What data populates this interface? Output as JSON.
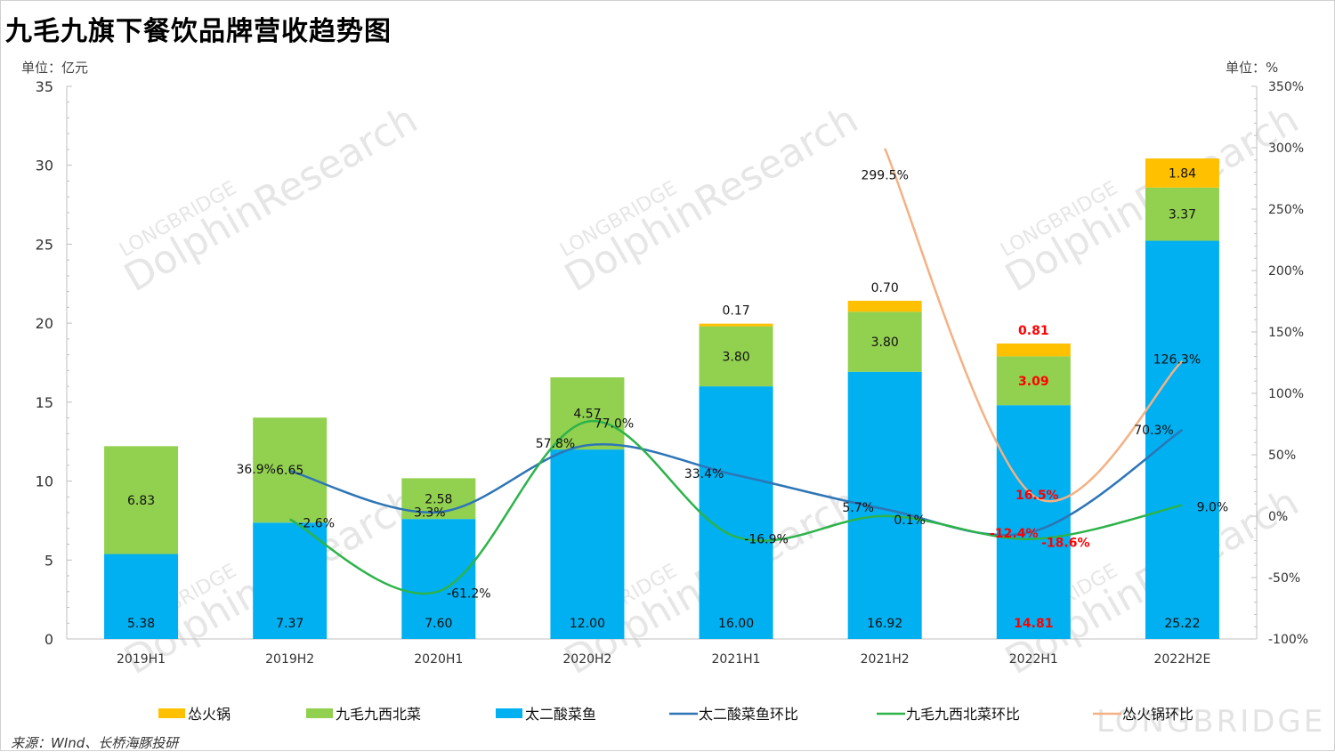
{
  "title": "九毛九旗下餐饮品牌营收趋势图",
  "unit_left": "单位：亿元",
  "unit_right": "单位：%",
  "source": "来源：WInd、长桥海豚投研",
  "watermark": {
    "brand": "DolphinResearch",
    "sub": "LONGBRIDGE",
    "corner": "LONGBRIDGE"
  },
  "colors": {
    "taier": "#00b0f0",
    "jiumaojiu": "#92d050",
    "song": "#ffc000",
    "taier_line": "#2e75b6",
    "jiumaojiu_line": "#2db34a",
    "song_line": "#f4b183",
    "red_label": "#ff0000"
  },
  "chart_data": {
    "type": "bar",
    "stacked": true,
    "categories": [
      "2019H1",
      "2019H2",
      "2020H1",
      "2020H2",
      "2021H1",
      "2021H2",
      "2022H1",
      "2022H2E"
    ],
    "y_left": {
      "label": "单位：亿元",
      "min": 0,
      "max": 35,
      "ticks": [
        "0",
        "5",
        "10",
        "15",
        "20",
        "25",
        "30",
        "35"
      ]
    },
    "y_right": {
      "label": "单位：%",
      "min": -100,
      "max": 350,
      "ticks": [
        "-100%",
        "-50%",
        "0%",
        "50%",
        "100%",
        "150%",
        "200%",
        "250%",
        "300%",
        "350%"
      ]
    },
    "grid": false,
    "legend_position": "bottom",
    "series": [
      {
        "name": "太二酸菜鱼",
        "kind": "bar",
        "color_key": "taier",
        "values": [
          5.38,
          7.37,
          7.6,
          12.0,
          16.0,
          16.92,
          14.81,
          25.22
        ],
        "labels": [
          "5.38",
          "7.37",
          "7.60",
          "12.00",
          "16.00",
          "16.92",
          "14.81",
          "25.22"
        ],
        "red": [
          false,
          false,
          false,
          false,
          false,
          false,
          true,
          false
        ]
      },
      {
        "name": "九毛九西北菜",
        "kind": "bar",
        "color_key": "jiumaojiu",
        "values": [
          6.83,
          6.65,
          2.58,
          4.57,
          3.8,
          3.8,
          3.09,
          3.37
        ],
        "labels": [
          "6.83",
          "6.65",
          "2.58",
          "4.57",
          "3.80",
          "3.80",
          "3.09",
          "3.37"
        ],
        "red": [
          false,
          false,
          false,
          false,
          false,
          false,
          true,
          false
        ]
      },
      {
        "name": "怂火锅",
        "kind": "bar",
        "color_key": "song",
        "values": [
          null,
          null,
          null,
          null,
          0.17,
          0.7,
          0.81,
          1.84
        ],
        "labels": [
          null,
          null,
          null,
          null,
          "0.17",
          "0.70",
          "0.81",
          "1.84"
        ],
        "red": [
          false,
          false,
          false,
          false,
          false,
          false,
          true,
          false
        ]
      },
      {
        "name": "太二酸菜鱼环比",
        "kind": "line",
        "color_key": "taier_line",
        "values": [
          null,
          36.9,
          3.3,
          57.8,
          33.4,
          5.7,
          -12.4,
          70.3
        ],
        "labels": [
          null,
          "36.9%",
          "3.3%",
          "57.8%",
          "33.4%",
          "5.7%",
          "-12.4%",
          "70.3%"
        ],
        "red": [
          false,
          false,
          false,
          false,
          false,
          false,
          true,
          false
        ]
      },
      {
        "name": "九毛九西北菜环比",
        "kind": "line",
        "color_key": "jiumaojiu_line",
        "values": [
          null,
          -2.6,
          -61.2,
          77.0,
          -16.9,
          0.1,
          -18.6,
          9.0
        ],
        "labels": [
          null,
          "-2.6%",
          "-61.2%",
          "77.0%",
          "-16.9%",
          "0.1%",
          "-18.6%",
          "9.0%"
        ],
        "red": [
          false,
          false,
          false,
          false,
          false,
          false,
          true,
          false
        ]
      },
      {
        "name": "怂火锅环比",
        "kind": "line",
        "color_key": "song_line",
        "values": [
          null,
          null,
          null,
          null,
          null,
          299.5,
          16.5,
          126.3
        ],
        "labels": [
          null,
          null,
          null,
          null,
          null,
          "299.5%",
          "16.5%",
          "126.3%"
        ],
        "red": [
          false,
          false,
          false,
          false,
          false,
          false,
          true,
          false
        ]
      }
    ],
    "legend": [
      "怂火锅",
      "九毛九西北菜",
      "太二酸菜鱼",
      "太二酸菜鱼环比",
      "九毛九西北菜环比",
      "怂火锅环比"
    ]
  }
}
